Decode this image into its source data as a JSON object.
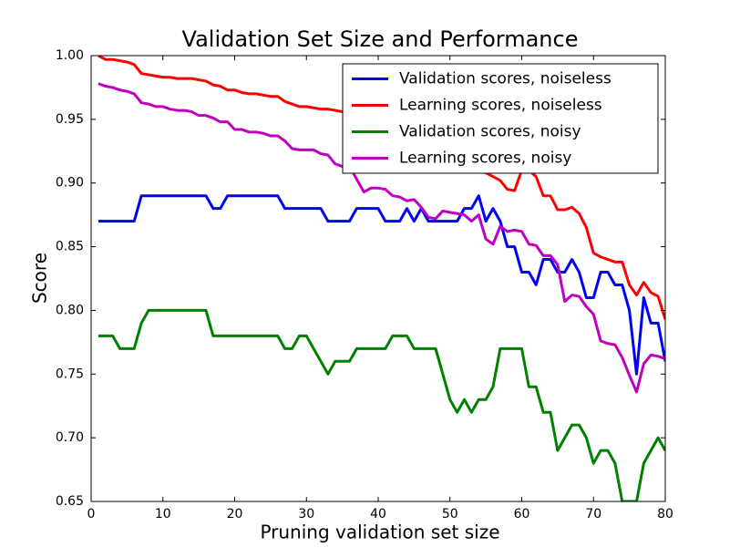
{
  "chart_data": {
    "type": "line",
    "title": "Validation Set Size and Performance",
    "xlabel": "Pruning validation set size",
    "ylabel": "Score",
    "x": [
      1,
      2,
      3,
      4,
      5,
      6,
      7,
      8,
      9,
      10,
      11,
      12,
      13,
      14,
      15,
      16,
      17,
      18,
      19,
      20,
      21,
      22,
      23,
      24,
      25,
      26,
      27,
      28,
      29,
      30,
      31,
      32,
      33,
      34,
      35,
      36,
      37,
      38,
      39,
      40,
      41,
      42,
      43,
      44,
      45,
      46,
      47,
      48,
      49,
      50,
      51,
      52,
      53,
      54,
      55,
      56,
      57,
      58,
      59,
      60,
      61,
      62,
      63,
      64,
      65,
      66,
      67,
      68,
      69,
      70,
      71,
      72,
      73,
      74,
      75,
      76,
      77,
      78,
      79,
      80
    ],
    "xlim": [
      0,
      80
    ],
    "xticks": [
      0,
      10,
      20,
      30,
      40,
      50,
      60,
      70,
      80
    ],
    "ylim": [
      0.65,
      1.0
    ],
    "yticks": [
      0.65,
      {
        "value": 0.7,
        "label": "0.70"
      },
      0.75,
      {
        "value": 0.8,
        "label": "0.80"
      },
      0.85,
      {
        "value": 0.9,
        "label": "0.90"
      },
      0.95,
      {
        "value": 1.0,
        "label": "1.00"
      }
    ],
    "grid": false,
    "legend": "upper right",
    "series": [
      {
        "name": "Validation scores, noiseless",
        "color": "#0000ff",
        "values": [
          0.87,
          0.87,
          0.87,
          0.87,
          0.87,
          0.87,
          0.89,
          0.89,
          0.89,
          0.89,
          0.89,
          0.89,
          0.89,
          0.89,
          0.89,
          0.89,
          0.88,
          0.88,
          0.89,
          0.89,
          0.89,
          0.89,
          0.89,
          0.89,
          0.89,
          0.89,
          0.88,
          0.88,
          0.88,
          0.88,
          0.88,
          0.88,
          0.87,
          0.87,
          0.87,
          0.87,
          0.88,
          0.88,
          0.88,
          0.88,
          0.87,
          0.87,
          0.87,
          0.88,
          0.87,
          0.88,
          0.87,
          0.87,
          0.87,
          0.87,
          0.87,
          0.88,
          0.88,
          0.89,
          0.87,
          0.88,
          0.87,
          0.85,
          0.85,
          0.83,
          0.83,
          0.82,
          0.84,
          0.84,
          0.83,
          0.83,
          0.84,
          0.83,
          0.81,
          0.81,
          0.83,
          0.83,
          0.82,
          0.82,
          0.8,
          0.75,
          0.81,
          0.79,
          0.79,
          0.76
        ]
      },
      {
        "name": "Learning scores, noiseless",
        "color": "#ff0000",
        "values": [
          1.0,
          0.997,
          0.997,
          0.996,
          0.995,
          0.993,
          0.986,
          0.985,
          0.984,
          0.983,
          0.983,
          0.982,
          0.982,
          0.982,
          0.981,
          0.98,
          0.977,
          0.976,
          0.973,
          0.973,
          0.971,
          0.97,
          0.97,
          0.969,
          0.968,
          0.968,
          0.964,
          0.962,
          0.96,
          0.96,
          0.959,
          0.958,
          0.958,
          0.957,
          0.956,
          0.955,
          0.953,
          0.951,
          0.949,
          0.947,
          0.945,
          0.943,
          0.941,
          0.939,
          0.937,
          0.935,
          0.932,
          0.929,
          0.926,
          0.923,
          0.92,
          0.917,
          0.914,
          0.911,
          0.908,
          0.905,
          0.902,
          0.895,
          0.894,
          0.91,
          0.91,
          0.905,
          0.89,
          0.89,
          0.879,
          0.879,
          0.881,
          0.876,
          0.865,
          0.845,
          0.842,
          0.84,
          0.838,
          0.838,
          0.82,
          0.812,
          0.822,
          0.814,
          0.811,
          0.793
        ]
      },
      {
        "name": "Validation scores, noisy",
        "color": "#008000",
        "values": [
          0.78,
          0.78,
          0.78,
          0.77,
          0.77,
          0.77,
          0.79,
          0.8,
          0.8,
          0.8,
          0.8,
          0.8,
          0.8,
          0.8,
          0.8,
          0.8,
          0.78,
          0.78,
          0.78,
          0.78,
          0.78,
          0.78,
          0.78,
          0.78,
          0.78,
          0.78,
          0.77,
          0.77,
          0.78,
          0.78,
          0.77,
          0.76,
          0.75,
          0.76,
          0.76,
          0.76,
          0.77,
          0.77,
          0.77,
          0.77,
          0.77,
          0.78,
          0.78,
          0.78,
          0.77,
          0.77,
          0.77,
          0.77,
          0.75,
          0.73,
          0.72,
          0.73,
          0.72,
          0.73,
          0.73,
          0.74,
          0.77,
          0.77,
          0.77,
          0.77,
          0.74,
          0.74,
          0.72,
          0.72,
          0.69,
          0.7,
          0.71,
          0.71,
          0.7,
          0.68,
          0.69,
          0.69,
          0.68,
          0.65,
          0.65,
          0.65,
          0.68,
          0.69,
          0.7,
          0.69
        ]
      },
      {
        "name": "Learning scores, noisy",
        "color": "#bf00bf",
        "values": [
          0.978,
          0.976,
          0.975,
          0.973,
          0.972,
          0.97,
          0.963,
          0.962,
          0.96,
          0.96,
          0.958,
          0.957,
          0.957,
          0.956,
          0.953,
          0.953,
          0.951,
          0.948,
          0.948,
          0.942,
          0.942,
          0.94,
          0.94,
          0.939,
          0.937,
          0.937,
          0.933,
          0.927,
          0.926,
          0.926,
          0.926,
          0.923,
          0.922,
          0.915,
          0.913,
          0.913,
          0.903,
          0.893,
          0.896,
          0.896,
          0.895,
          0.89,
          0.889,
          0.886,
          0.887,
          0.881,
          0.873,
          0.872,
          0.878,
          0.877,
          0.876,
          0.875,
          0.87,
          0.875,
          0.856,
          0.852,
          0.866,
          0.862,
          0.863,
          0.862,
          0.852,
          0.851,
          0.843,
          0.843,
          0.836,
          0.807,
          0.812,
          0.811,
          0.803,
          0.797,
          0.776,
          0.774,
          0.773,
          0.763,
          0.749,
          0.736,
          0.758,
          0.765,
          0.764,
          0.762
        ]
      }
    ]
  }
}
